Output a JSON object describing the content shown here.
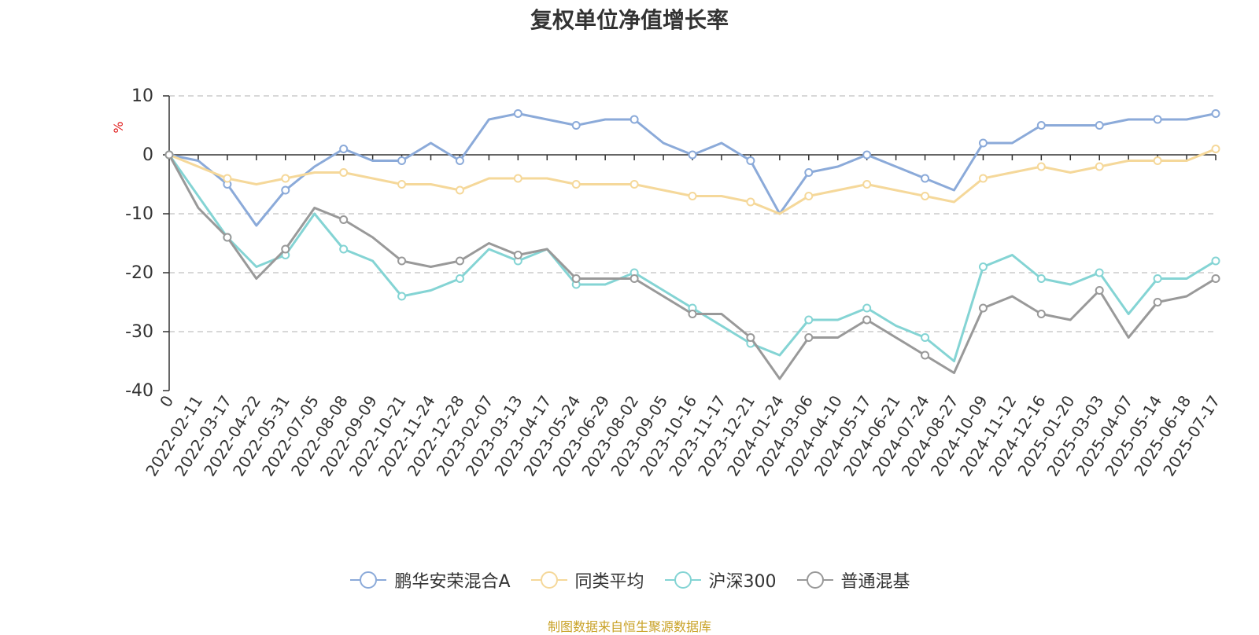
{
  "chart_data": {
    "type": "line",
    "title": "复权单位净值增长率",
    "ylabel": "%",
    "ylim": [
      -40,
      10
    ],
    "yticks": [
      10,
      0,
      -10,
      -20,
      -30,
      -40
    ],
    "grid": true,
    "legend_position": "bottom",
    "x_tick_labels": [
      "0",
      "2022-02-11",
      "2022-03-17",
      "2022-04-22",
      "2022-05-31",
      "2022-07-05",
      "2022-08-08",
      "2022-09-09",
      "2022-10-21",
      "2022-11-24",
      "2022-12-28",
      "2023-02-07",
      "2023-03-13",
      "2023-04-17",
      "2023-05-24",
      "2023-06-29",
      "2023-08-02",
      "2023-09-05",
      "2023-10-16",
      "2023-11-17",
      "2023-12-21",
      "2024-01-24",
      "2024-03-06",
      "2024-04-10",
      "2024-05-17",
      "2024-06-21",
      "2024-07-24",
      "2024-08-27",
      "2024-10-09",
      "2024-11-12",
      "2024-12-16",
      "2025-01-20",
      "2025-03-03",
      "2025-04-07",
      "2025-05-14",
      "2025-06-18",
      "2025-07-17"
    ],
    "x_index": [
      0,
      1,
      2,
      3,
      4,
      5,
      6,
      7,
      8,
      9,
      10,
      11,
      12,
      13,
      14,
      15,
      16,
      17,
      18,
      19,
      20,
      21,
      22,
      23,
      24,
      25,
      26,
      27,
      28,
      29,
      30,
      31,
      32,
      33,
      34,
      35,
      36
    ],
    "series": [
      {
        "name": "鹏华安荣混合A",
        "color": "#8baad9",
        "values": [
          0,
          -1,
          -5,
          -12,
          -6,
          -2,
          1,
          -1,
          -1,
          2,
          -1,
          6,
          7,
          6,
          5,
          6,
          6,
          2,
          0,
          2,
          -1,
          -10,
          -3,
          -2,
          0,
          -2,
          -4,
          -6,
          2,
          2,
          5,
          5,
          5,
          6,
          6,
          6,
          7
        ]
      },
      {
        "name": "同类平均",
        "color": "#f5d89a",
        "values": [
          0,
          -2,
          -4,
          -5,
          -4,
          -3,
          -3,
          -4,
          -5,
          -5,
          -6,
          -4,
          -4,
          -4,
          -5,
          -5,
          -5,
          -6,
          -7,
          -7,
          -8,
          -10,
          -7,
          -6,
          -5,
          -6,
          -7,
          -8,
          -4,
          -3,
          -2,
          -3,
          -2,
          -1,
          -1,
          -1,
          1
        ]
      },
      {
        "name": "沪深300",
        "color": "#84d4d4",
        "values": [
          0,
          -7,
          -14,
          -19,
          -17,
          -10,
          -16,
          -18,
          -24,
          -23,
          -21,
          -16,
          -18,
          -16,
          -22,
          -22,
          -20,
          -23,
          -26,
          -29,
          -32,
          -34,
          -28,
          -28,
          -26,
          -29,
          -31,
          -35,
          -19,
          -17,
          -21,
          -22,
          -20,
          -27,
          -21,
          -21,
          -18
        ]
      },
      {
        "name": "普通混基",
        "color": "#999999",
        "values": [
          0,
          -9,
          -14,
          -21,
          -16,
          -9,
          -11,
          -14,
          -18,
          -19,
          -18,
          -15,
          -17,
          -16,
          -21,
          -21,
          -21,
          -24,
          -27,
          -27,
          -31,
          -38,
          -31,
          -31,
          -28,
          -31,
          -34,
          -37,
          -26,
          -24,
          -27,
          -28,
          -23,
          -31,
          -25,
          -24,
          -21
        ]
      }
    ]
  },
  "source_note": "制图数据来自恒生聚源数据库"
}
